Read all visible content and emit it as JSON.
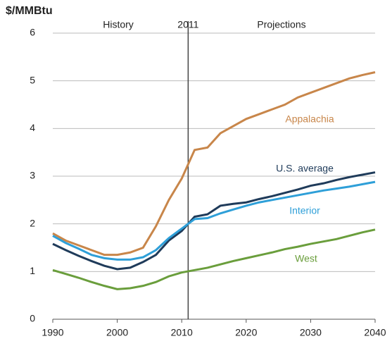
{
  "chart_data": {
    "type": "line",
    "y_unit": "$/MMBtu",
    "annotations": [
      "History",
      "Projections"
    ],
    "vline": 2011,
    "x": [
      1990,
      1992,
      1994,
      1996,
      1998,
      2000,
      2002,
      2004,
      2006,
      2008,
      2010,
      2012,
      2014,
      2016,
      2018,
      2020,
      2022,
      2024,
      2026,
      2028,
      2030,
      2032,
      2034,
      2036,
      2038,
      2040
    ],
    "series": [
      {
        "name": "Appalachia",
        "color": "#c8864a",
        "values": [
          1.8,
          1.65,
          1.55,
          1.45,
          1.35,
          1.35,
          1.4,
          1.5,
          1.95,
          2.5,
          2.95,
          3.55,
          3.6,
          3.9,
          4.05,
          4.2,
          4.3,
          4.4,
          4.5,
          4.65,
          4.75,
          4.85,
          4.95,
          5.05,
          5.12,
          5.18
        ]
      },
      {
        "name": "U.S. average",
        "color": "#1f3b5a",
        "values": [
          1.58,
          1.45,
          1.33,
          1.22,
          1.12,
          1.05,
          1.08,
          1.2,
          1.35,
          1.65,
          1.85,
          2.15,
          2.2,
          2.38,
          2.42,
          2.45,
          2.52,
          2.58,
          2.65,
          2.72,
          2.8,
          2.85,
          2.92,
          2.98,
          3.03,
          3.08
        ]
      },
      {
        "name": "Interior",
        "color": "#2e9fd8",
        "values": [
          1.75,
          1.6,
          1.48,
          1.35,
          1.28,
          1.25,
          1.25,
          1.3,
          1.45,
          1.7,
          1.9,
          2.1,
          2.12,
          2.22,
          2.3,
          2.38,
          2.45,
          2.5,
          2.55,
          2.6,
          2.65,
          2.7,
          2.74,
          2.78,
          2.83,
          2.88
        ]
      },
      {
        "name": "West",
        "color": "#6a9e3c",
        "values": [
          1.03,
          0.95,
          0.87,
          0.78,
          0.7,
          0.63,
          0.65,
          0.7,
          0.78,
          0.9,
          0.98,
          1.03,
          1.08,
          1.15,
          1.22,
          1.28,
          1.34,
          1.4,
          1.47,
          1.52,
          1.58,
          1.63,
          1.68,
          1.75,
          1.82,
          1.88
        ]
      }
    ],
    "xlim": [
      1990,
      2040
    ],
    "xticks": [
      1990,
      2000,
      2010,
      2020,
      2030,
      2040
    ],
    "ylim": [
      0,
      6
    ],
    "yticks": [
      0,
      1,
      2,
      3,
      4,
      5,
      6
    ],
    "grid": true
  }
}
